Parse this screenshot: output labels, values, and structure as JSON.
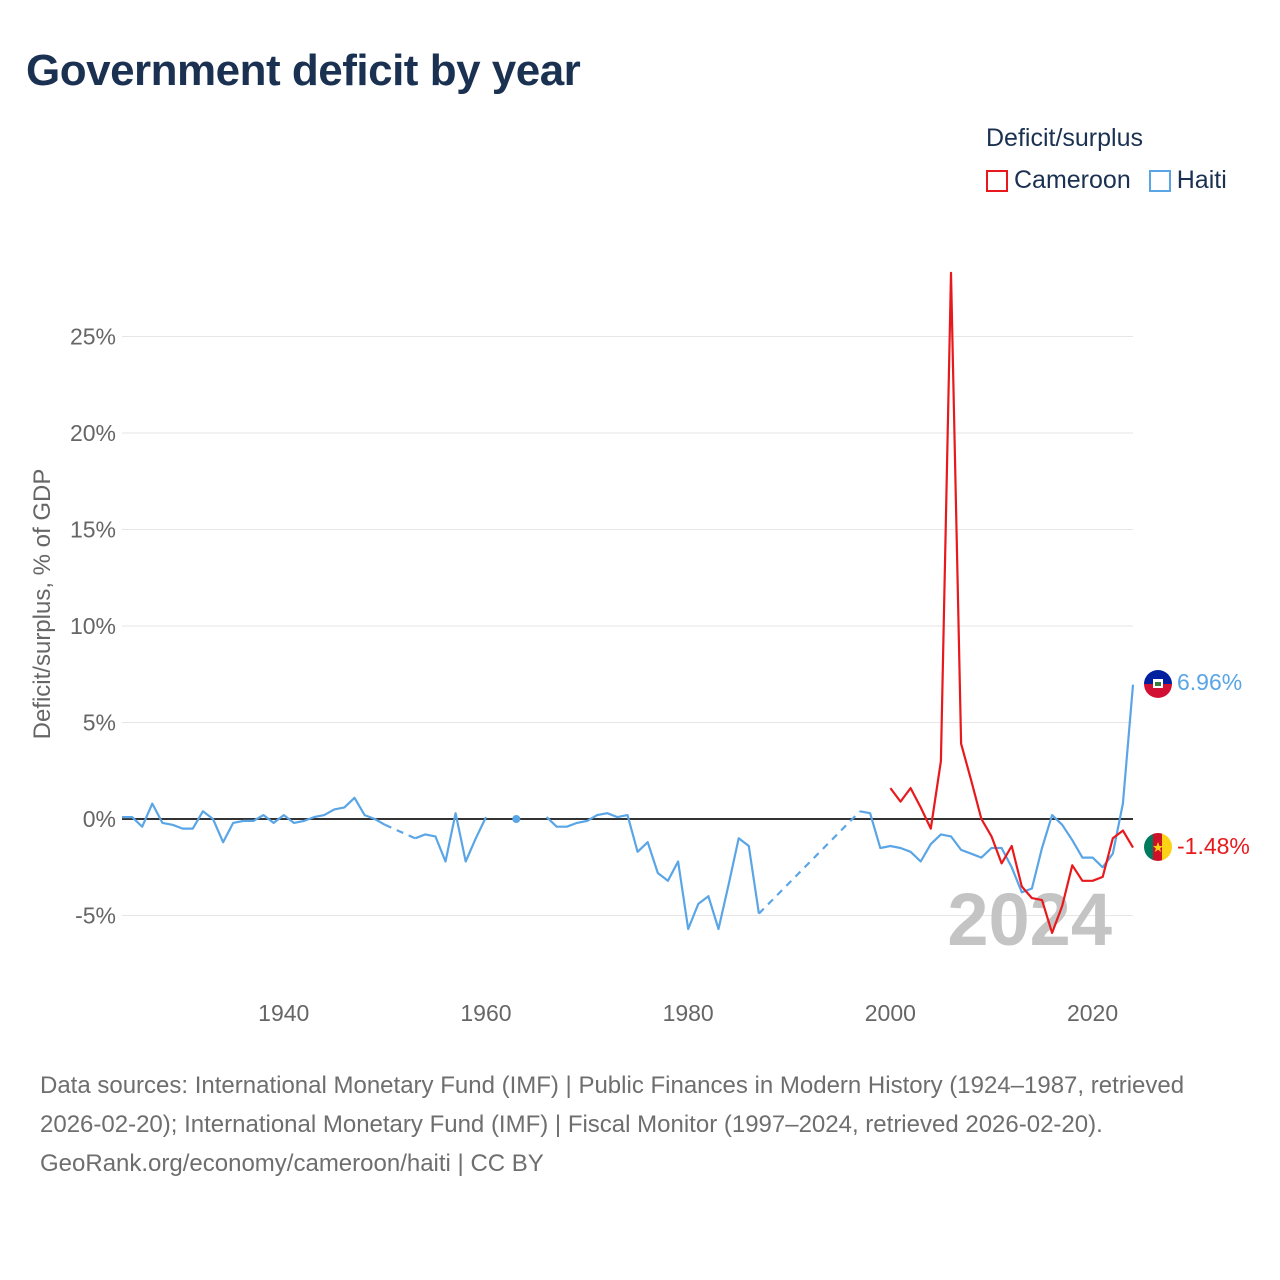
{
  "title": "Government deficit by year",
  "legend": {
    "title": "Deficit/surplus",
    "items": [
      {
        "label": "Cameroon",
        "color": "#e8191c"
      },
      {
        "label": "Haiti",
        "color": "#5aa5e6"
      }
    ]
  },
  "watermark_year": "2024",
  "footer": {
    "sources": "Data sources: International Monetary Fund (IMF) | Public Finances in Modern History (1924–1987, retrieved 2026-02-20); International Monetary Fund (IMF) | Fiscal Monitor (1997–2024, retrieved 2026-02-20).",
    "credit": "GeoRank.org/economy/cameroon/haiti | CC BY"
  },
  "chart_data": {
    "type": "line",
    "title": "Government deficit by year",
    "xlabel": "",
    "ylabel": "Deficit/surplus, % of GDP",
    "xlim": [
      1924,
      2024
    ],
    "ylim": [
      -8.5,
      29
    ],
    "x_ticks": [
      1940,
      1960,
      1980,
      2000,
      2020
    ],
    "x_tick_labels": [
      "1940",
      "1960",
      "1980",
      "2000",
      "2020"
    ],
    "y_ticks": [
      -5,
      0,
      5,
      10,
      15,
      20,
      25
    ],
    "y_tick_labels": [
      "-5%",
      "0%",
      "5%",
      "10%",
      "15%",
      "20%",
      "25%"
    ],
    "grid": true,
    "zero_line": true,
    "series": [
      {
        "name": "Haiti",
        "color": "#5aa5e6",
        "end_label": "6.96%",
        "segments": [
          {
            "x": [
              1924,
              1925,
              1926,
              1927,
              1928,
              1929,
              1930,
              1931,
              1932,
              1933,
              1934,
              1935,
              1936,
              1937,
              1938,
              1939,
              1940,
              1941,
              1942,
              1943,
              1944,
              1945,
              1946,
              1947,
              1948,
              1949,
              1950
            ],
            "y": [
              0.1,
              0.1,
              -0.4,
              0.8,
              -0.2,
              -0.3,
              -0.5,
              -0.5,
              0.4,
              0.0,
              -1.2,
              -0.2,
              -0.1,
              -0.1,
              0.2,
              -0.2,
              0.2,
              -0.2,
              -0.1,
              0.1,
              0.2,
              0.5,
              0.6,
              1.1,
              0.2,
              0.0,
              -0.3
            ]
          },
          {
            "x": [
              1950,
              1953
            ],
            "y": [
              -0.3,
              -1.0
            ],
            "dashed": true
          },
          {
            "x": [
              1953,
              1954,
              1955,
              1956,
              1957,
              1958,
              1959,
              1960
            ],
            "y": [
              -1.0,
              -0.8,
              -0.9,
              -2.2,
              0.3,
              -2.2,
              -1.0,
              0.1
            ]
          },
          {
            "x": [
              1963
            ],
            "y": [
              0.0
            ],
            "point": true
          },
          {
            "x": [
              1966,
              1967,
              1968,
              1969,
              1970,
              1971,
              1972,
              1973,
              1974,
              1975,
              1976,
              1977,
              1978,
              1979,
              1980,
              1981,
              1982,
              1983,
              1984,
              1985,
              1986,
              1987
            ],
            "y": [
              0.1,
              -0.4,
              -0.4,
              -0.2,
              -0.1,
              0.2,
              0.3,
              0.1,
              0.2,
              -1.7,
              -1.2,
              -2.8,
              -3.2,
              -2.2,
              -5.7,
              -4.4,
              -4.0,
              -5.7,
              -3.4,
              -1.0,
              -1.4,
              -4.9
            ]
          },
          {
            "x": [
              1987,
              1997
            ],
            "y": [
              -4.9,
              0.4
            ],
            "dashed": true
          },
          {
            "x": [
              1997,
              1998,
              1999,
              2000,
              2001,
              2002,
              2003,
              2004,
              2005,
              2006,
              2007,
              2008,
              2009,
              2010,
              2011,
              2012,
              2013,
              2014,
              2015,
              2016,
              2017,
              2018,
              2019,
              2020,
              2021,
              2022,
              2023,
              2024
            ],
            "y": [
              0.4,
              0.3,
              -1.5,
              -1.4,
              -1.5,
              -1.7,
              -2.2,
              -1.3,
              -0.8,
              -0.9,
              -1.6,
              -1.8,
              -2.0,
              -1.5,
              -1.5,
              -2.5,
              -3.8,
              -3.6,
              -1.5,
              0.2,
              -0.3,
              -1.1,
              -2.0,
              -2.0,
              -2.5,
              -1.8,
              0.8,
              6.96
            ]
          }
        ]
      },
      {
        "name": "Cameroon",
        "color": "#e8191c",
        "end_label": "-1.48%",
        "segments": [
          {
            "x": [
              2000,
              2001,
              2002,
              2003,
              2004,
              2005,
              2006,
              2007,
              2008,
              2009,
              2010,
              2011,
              2012,
              2013,
              2014,
              2015,
              2016,
              2017,
              2018,
              2019,
              2020,
              2021,
              2022,
              2023,
              2024
            ],
            "y": [
              1.6,
              0.9,
              1.6,
              0.6,
              -0.5,
              3.0,
              28.3,
              3.9,
              2.0,
              0.0,
              -0.9,
              -2.3,
              -1.4,
              -3.5,
              -4.1,
              -4.2,
              -5.9,
              -4.5,
              -2.4,
              -3.2,
              -3.2,
              -3.0,
              -1.0,
              -0.6,
              -1.48
            ]
          }
        ]
      }
    ]
  }
}
